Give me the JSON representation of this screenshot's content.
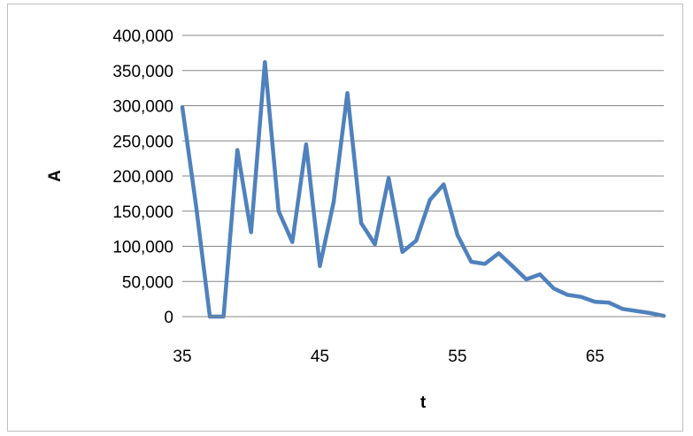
{
  "chart_data": {
    "type": "line",
    "title": "",
    "xlabel": "t",
    "ylabel": "A",
    "xlim": [
      35,
      70
    ],
    "ylim": [
      0,
      400000
    ],
    "x_ticks": [
      35,
      45,
      55,
      65
    ],
    "x_tick_labels": [
      "35",
      "45",
      "55",
      "65"
    ],
    "y_ticks": [
      0,
      50000,
      100000,
      150000,
      200000,
      250000,
      300000,
      350000,
      400000
    ],
    "y_tick_labels": [
      "0",
      "50,000",
      "100,000",
      "150,000",
      "200,000",
      "250,000",
      "300,000",
      "350,000",
      "400,000"
    ],
    "grid": true,
    "legend": "none",
    "series": [
      {
        "color": "#4f81bd",
        "x": [
          35,
          36,
          37,
          38,
          39,
          40,
          41,
          42,
          43,
          44,
          45,
          46,
          47,
          48,
          49,
          50,
          51,
          52,
          53,
          54,
          55,
          56,
          57,
          58,
          59,
          60,
          61,
          62,
          63,
          64,
          65,
          66,
          67,
          68,
          69,
          70
        ],
        "values": [
          298000,
          158000,
          0,
          0,
          237000,
          120000,
          362000,
          150000,
          106000,
          245000,
          72000,
          163000,
          318000,
          133000,
          103000,
          197000,
          92000,
          108000,
          166000,
          188000,
          116000,
          78000,
          75000,
          90000,
          72000,
          53000,
          60000,
          40000,
          31000,
          28000,
          21000,
          20000,
          11000,
          8000,
          5000,
          1000
        ]
      }
    ]
  }
}
